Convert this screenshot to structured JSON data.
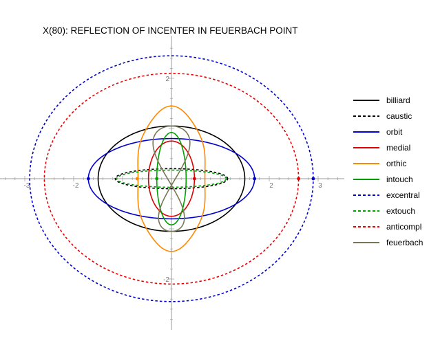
{
  "chart_data": {
    "type": "line",
    "title": "X(80): REFLECTION OF INCENTER IN FEUERBACH POINT",
    "xlabel": "",
    "ylabel": "",
    "xlim": [
      -3.5,
      3.5
    ],
    "ylim": [
      -3.1,
      2.7
    ],
    "x_ticks": [
      -3,
      -2,
      2,
      3
    ],
    "y_ticks": [
      -2,
      2
    ],
    "x_tick_labels": [
      "-3",
      "-2",
      "2",
      "3"
    ],
    "y_tick_labels": [
      "-2",
      "2"
    ],
    "grid": false,
    "legend_position": "right",
    "series": [
      {
        "name": "billiard",
        "color": "#000000",
        "dash": "solid",
        "shape": "ellipse",
        "a": 1.5,
        "b": 1.05
      },
      {
        "name": "caustic",
        "color": "#000000",
        "dash": "dashed",
        "shape": "ellipse",
        "a": 1.15,
        "b": 0.2
      },
      {
        "name": "orbit",
        "color": "#0000cc",
        "dash": "solid",
        "shape": "ellipse",
        "a": 1.7,
        "b": 0.8
      },
      {
        "name": "medial",
        "color": "#dd0000",
        "dash": "solid",
        "shape": "ellipse",
        "a": 0.47,
        "b": 0.75
      },
      {
        "name": "orthic",
        "color": "#ff8800",
        "dash": "solid",
        "shape": "orthic",
        "a": 0.95,
        "b": 1.45
      },
      {
        "name": "intouch",
        "color": "#00a000",
        "dash": "solid",
        "shape": "ellipse",
        "a": 0.3,
        "b": 0.92
      },
      {
        "name": "excentral",
        "color": "#0000cc",
        "dash": "dashed",
        "shape": "ellipse",
        "a": 2.9,
        "b": 2.45
      },
      {
        "name": "extouch",
        "color": "#00a000",
        "dash": "dashed",
        "shape": "ellipse",
        "a": 1.12,
        "b": 0.17
      },
      {
        "name": "anticompl",
        "color": "#ee0000",
        "dash": "dashed",
        "shape": "ellipse",
        "a": 2.6,
        "b": 2.1
      },
      {
        "name": "feuerbach",
        "color": "#777755",
        "dash": "solid",
        "shape": "lissajous",
        "a": 0.32,
        "b": 1.05
      }
    ],
    "markers": [
      {
        "series": "orbit",
        "color": "#0000cc",
        "x": -1.7,
        "y": 0
      },
      {
        "series": "orbit",
        "color": "#0000cc",
        "x": 1.7,
        "y": 0
      },
      {
        "series": "excentral",
        "color": "#0000cc",
        "x": 2.9,
        "y": 0
      },
      {
        "series": "anticompl",
        "color": "#ee0000",
        "x": 2.6,
        "y": 0
      },
      {
        "series": "medial",
        "color": "#dd0000",
        "x": 0.47,
        "y": 0
      },
      {
        "series": "orthic",
        "color": "#ff8800",
        "x": -0.7,
        "y": 0
      },
      {
        "series": "intouch",
        "color": "#00a000",
        "x": -0.3,
        "y": 0
      }
    ]
  }
}
